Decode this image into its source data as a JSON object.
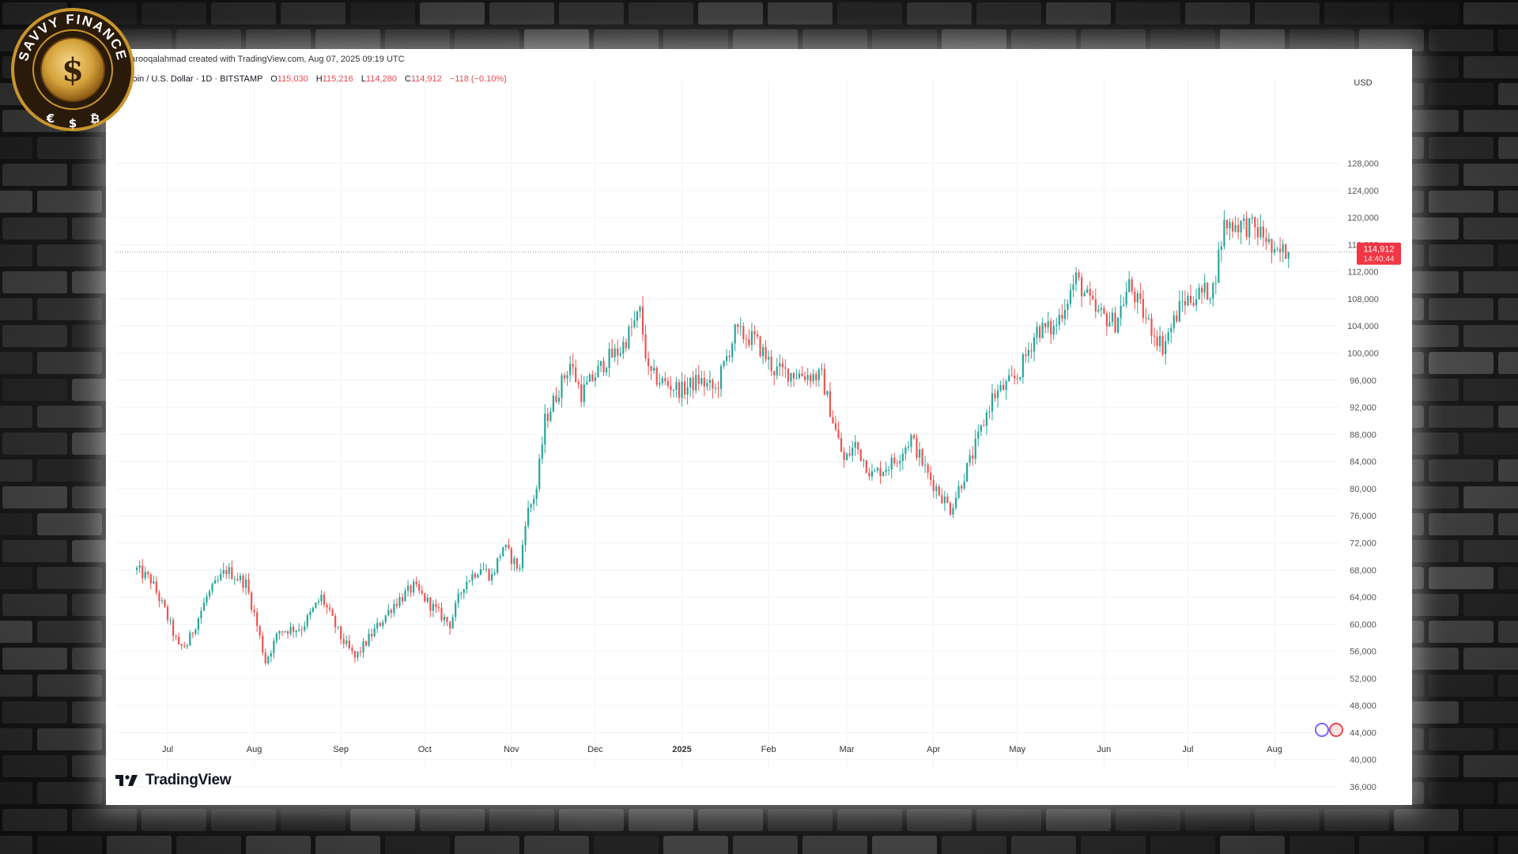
{
  "branding": {
    "badge_text": "SAVVY FINANCE",
    "badge_symbol": "$",
    "badge_coins": [
      "€",
      "$",
      "₿"
    ],
    "badge_color": "#c9962b"
  },
  "header": {
    "credit_text": "farooqalahmad created with TradingView.com, Aug 07, 2025 09:19 UTC",
    "symbol_text": "coin / U.S. Dollar · 1D · BITSTAMP",
    "open_label": "O",
    "open_value": "115,030",
    "high_label": "H",
    "high_value": "115,216",
    "low_label": "L",
    "low_value": "114,280",
    "close_label": "C",
    "close_value": "114,912",
    "change_text": "−118 (−0.10%)"
  },
  "footer": {
    "logo_text": "TradingView"
  },
  "colors": {
    "up": "#26a69a",
    "down": "#ef5350",
    "grid": "#f0f3fa",
    "price_tag": "#f23645"
  },
  "chart_data": {
    "type": "line",
    "title": "",
    "currency_label": "USD",
    "y_ticks": [
      "128,000",
      "124,000",
      "120,000",
      "116,000",
      "112,000",
      "108,000",
      "104,000",
      "100,000",
      "96,000",
      "92,000",
      "88,000",
      "84,000",
      "80,000",
      "76,000",
      "72,000",
      "68,000",
      "64,000",
      "60,000",
      "56,000",
      "52,000",
      "48,000",
      "44,000",
      "40,000",
      "36,000"
    ],
    "ylim": [
      34000,
      130000
    ],
    "x_ticks": [
      "Jul",
      "Aug",
      "Sep",
      "Oct",
      "Nov",
      "Dec",
      "2025",
      "Feb",
      "Mar",
      "Apr",
      "May",
      "Jun",
      "Jul",
      "Aug"
    ],
    "last_price_label": "114,912",
    "countdown_label": "14:40:44",
    "last_price": 114912,
    "series": [
      {
        "x": [
          "2024-06-20",
          "2024-06-25",
          "2024-06-30",
          "2024-07-05",
          "2024-07-08",
          "2024-07-15",
          "2024-07-22",
          "2024-07-29",
          "2024-08-01",
          "2024-08-05",
          "2024-08-10",
          "2024-08-18",
          "2024-08-25",
          "2024-09-01",
          "2024-09-06",
          "2024-09-12",
          "2024-09-20",
          "2024-09-27",
          "2024-10-05",
          "2024-10-10",
          "2024-10-15",
          "2024-10-21",
          "2024-10-25",
          "2024-10-29",
          "2024-11-04",
          "2024-11-06",
          "2024-11-10",
          "2024-11-13",
          "2024-11-22",
          "2024-11-26",
          "2024-12-05",
          "2024-12-10",
          "2024-12-17",
          "2024-12-20",
          "2024-12-26",
          "2025-01-01",
          "2025-01-07",
          "2025-01-13",
          "2025-01-20",
          "2025-01-27",
          "2025-02-03",
          "2025-02-10",
          "2025-02-20",
          "2025-02-25",
          "2025-02-28",
          "2025-03-04",
          "2025-03-10",
          "2025-03-18",
          "2025-03-24",
          "2025-03-30",
          "2025-04-07",
          "2025-04-15",
          "2025-04-22",
          "2025-05-01",
          "2025-05-08",
          "2025-05-14",
          "2025-05-22",
          "2025-05-29",
          "2025-06-05",
          "2025-06-10",
          "2025-06-16",
          "2025-06-22",
          "2025-06-29",
          "2025-07-04",
          "2025-07-10",
          "2025-07-14",
          "2025-07-20",
          "2025-07-24",
          "2025-07-29",
          "2025-08-01",
          "2025-08-04",
          "2025-08-06"
        ],
        "y": [
          68000,
          66500,
          62000,
          56500,
          57000,
          64000,
          68000,
          66000,
          61500,
          54500,
          59000,
          59500,
          64000,
          58000,
          55000,
          58500,
          63000,
          65500,
          62000,
          60000,
          66000,
          68500,
          67000,
          71500,
          68000,
          75500,
          80000,
          90000,
          98500,
          94000,
          99000,
          100500,
          106000,
          97000,
          95500,
          94500,
          96000,
          94500,
          103000,
          102000,
          97500,
          97000,
          96500,
          88500,
          84000,
          86500,
          82000,
          84000,
          87500,
          82000,
          77000,
          85000,
          93500,
          96500,
          103500,
          103500,
          111000,
          106000,
          104500,
          110000,
          105000,
          101000,
          107500,
          108500,
          109500,
          119000,
          119000,
          118500,
          117000,
          114000,
          115000,
          114912
        ]
      }
    ]
  }
}
